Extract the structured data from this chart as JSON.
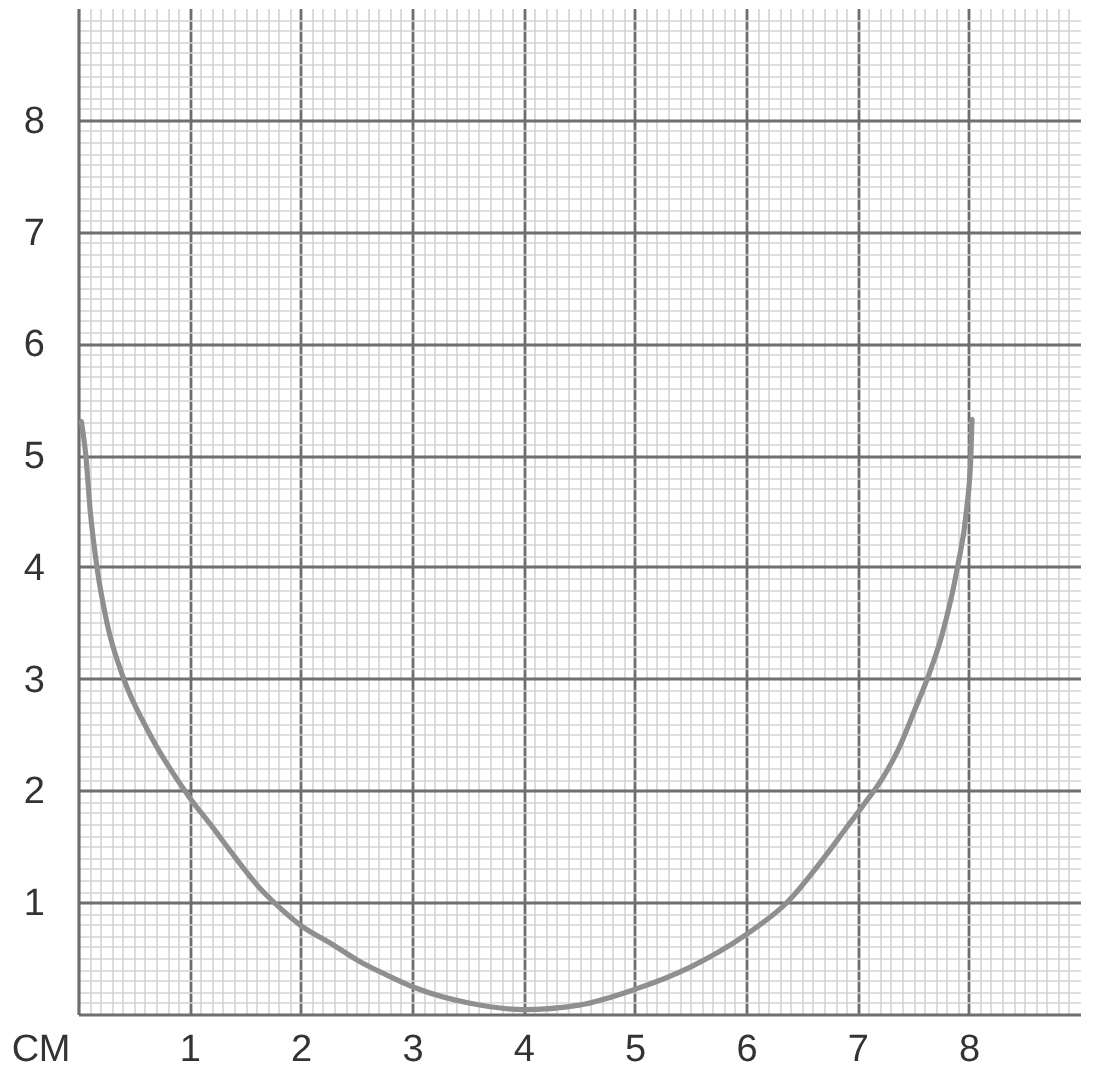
{
  "chart_data": {
    "type": "line",
    "xlabel": "СМ",
    "x": [
      0.03,
      0.07,
      0.11,
      0.17,
      0.26,
      0.41,
      0.62,
      1.0,
      1.21,
      1.39,
      1.63,
      1.78,
      1.99,
      2.29,
      2.53,
      2.77,
      3.04,
      3.5,
      4,
      4.5,
      5,
      5.5,
      6,
      6.37,
      6.71,
      6.89,
      7.07,
      7.22,
      7.37,
      7.52,
      7.64,
      7.76,
      7.9,
      7.98,
      8.02,
      8.03
    ],
    "series": [
      {
        "color": "#8f8f8f",
        "values": [
          5.3,
          5.0,
          4.5,
          4.0,
          3.5,
          3.0,
          2.55,
          1.94,
          1.67,
          1.43,
          1.13,
          0.98,
          0.8,
          0.62,
          0.47,
          0.35,
          0.23,
          0.1,
          0.04,
          0.08,
          0.22,
          0.42,
          0.71,
          1.0,
          1.41,
          1.65,
          1.89,
          2.1,
          2.37,
          2.73,
          3.03,
          3.39,
          4.0,
          4.5,
          5.0,
          5.32
        ]
      }
    ],
    "xlim": [
      0,
      9
    ],
    "ylim": [
      0,
      9
    ],
    "xticks": [
      {
        "value": 0.1,
        "label": null
      },
      {
        "value": 0.2,
        "label": null
      },
      {
        "value": 0.3,
        "label": null
      },
      {
        "value": 0.4,
        "label": null
      },
      {
        "value": 0.5,
        "label": null
      },
      {
        "value": 0.6,
        "label": null
      },
      {
        "value": 0.7,
        "label": null
      },
      {
        "value": 0.8,
        "label": null
      },
      {
        "value": 0.9,
        "label": null
      },
      1,
      {
        "value": 1.1,
        "label": null
      },
      {
        "value": 1.2,
        "label": null
      },
      {
        "value": 1.3,
        "label": null
      },
      {
        "value": 1.4,
        "label": null
      },
      {
        "value": 1.5,
        "label": null
      },
      {
        "value": 1.6,
        "label": null
      },
      {
        "value": 1.7,
        "label": null
      },
      {
        "value": 1.8,
        "label": null
      },
      {
        "value": 1.9,
        "label": null
      },
      2,
      {
        "value": 2.1,
        "label": null
      },
      {
        "value": 2.2,
        "label": null
      },
      {
        "value": 2.3,
        "label": null
      },
      {
        "value": 2.4,
        "label": null
      },
      {
        "value": 2.5,
        "label": null
      },
      {
        "value": 2.6,
        "label": null
      },
      {
        "value": 2.7,
        "label": null
      },
      {
        "value": 2.8,
        "label": null
      },
      {
        "value": 2.9,
        "label": null
      },
      3,
      {
        "value": 3.1,
        "label": null
      },
      {
        "value": 3.2,
        "label": null
      },
      {
        "value": 3.3,
        "label": null
      },
      {
        "value": 3.4,
        "label": null
      },
      {
        "value": 3.5,
        "label": null
      },
      {
        "value": 3.6,
        "label": null
      },
      {
        "value": 3.7,
        "label": null
      },
      {
        "value": 3.8,
        "label": null
      },
      {
        "value": 3.9,
        "label": null
      },
      4,
      {
        "value": 4.1,
        "label": null
      },
      {
        "value": 4.2,
        "label": null
      },
      {
        "value": 4.3,
        "label": null
      },
      {
        "value": 4.4,
        "label": null
      },
      {
        "value": 4.5,
        "label": null
      },
      {
        "value": 4.6,
        "label": null
      },
      {
        "value": 4.7,
        "label": null
      },
      {
        "value": 4.8,
        "label": null
      },
      {
        "value": 4.9,
        "label": null
      },
      5,
      {
        "value": 5.1,
        "label": null
      },
      {
        "value": 5.2,
        "label": null
      },
      {
        "value": 5.3,
        "label": null
      },
      {
        "value": 5.4,
        "label": null
      },
      {
        "value": 5.5,
        "label": null
      },
      {
        "value": 5.6,
        "label": null
      },
      {
        "value": 5.7,
        "label": null
      },
      {
        "value": 5.8,
        "label": null
      },
      {
        "value": 5.9,
        "label": null
      },
      6,
      {
        "value": 6.1,
        "label": null
      },
      {
        "value": 6.2,
        "label": null
      },
      {
        "value": 6.3,
        "label": null
      },
      {
        "value": 6.4,
        "label": null
      },
      {
        "value": 6.5,
        "label": null
      },
      {
        "value": 6.6,
        "label": null
      },
      {
        "value": 6.7,
        "label": null
      },
      {
        "value": 6.8,
        "label": null
      },
      {
        "value": 6.9,
        "label": null
      },
      7,
      {
        "value": 7.1,
        "label": null
      },
      {
        "value": 7.2,
        "label": null
      },
      {
        "value": 7.3,
        "label": null
      },
      {
        "value": 7.4,
        "label": null
      },
      {
        "value": 7.5,
        "label": null
      },
      {
        "value": 7.6,
        "label": null
      },
      {
        "value": 7.7,
        "label": null
      },
      {
        "value": 7.8,
        "label": null
      },
      {
        "value": 7.9,
        "label": null
      },
      8,
      {
        "value": 8.1,
        "label": null
      },
      {
        "value": 8.2,
        "label": null
      },
      {
        "value": 8.3,
        "label": null
      },
      {
        "value": 8.4,
        "label": null
      },
      {
        "value": 8.5,
        "label": null
      },
      {
        "value": 8.6,
        "label": null
      },
      {
        "value": 8.7,
        "label": null
      },
      {
        "value": 8.8,
        "label": null
      },
      {
        "value": 8.9,
        "label": null
      }
    ],
    "yticks": [
      {
        "value": 0.1,
        "label": null
      },
      {
        "value": 0.2,
        "label": null
      },
      {
        "value": 0.3,
        "label": null
      },
      {
        "value": 0.4,
        "label": null
      },
      {
        "value": 0.5,
        "label": null
      },
      {
        "value": 0.6,
        "label": null
      },
      {
        "value": 0.7,
        "label": null
      },
      {
        "value": 0.8,
        "label": null
      },
      {
        "value": 0.9,
        "label": null
      },
      1,
      {
        "value": 1.1,
        "label": null
      },
      {
        "value": 1.2,
        "label": null
      },
      {
        "value": 1.3,
        "label": null
      },
      {
        "value": 1.4,
        "label": null
      },
      {
        "value": 1.5,
        "label": null
      },
      {
        "value": 1.6,
        "label": null
      },
      {
        "value": 1.7,
        "label": null
      },
      {
        "value": 1.8,
        "label": null
      },
      {
        "value": 1.9,
        "label": null
      },
      2,
      {
        "value": 2.1,
        "label": null
      },
      {
        "value": 2.2,
        "label": null
      },
      {
        "value": 2.3,
        "label": null
      },
      {
        "value": 2.4,
        "label": null
      },
      {
        "value": 2.5,
        "label": null
      },
      {
        "value": 2.6,
        "label": null
      },
      {
        "value": 2.7,
        "label": null
      },
      {
        "value": 2.8,
        "label": null
      },
      {
        "value": 2.9,
        "label": null
      },
      3,
      {
        "value": 3.1,
        "label": null
      },
      {
        "value": 3.2,
        "label": null
      },
      {
        "value": 3.3,
        "label": null
      },
      {
        "value": 3.4,
        "label": null
      },
      {
        "value": 3.5,
        "label": null
      },
      {
        "value": 3.6,
        "label": null
      },
      {
        "value": 3.7,
        "label": null
      },
      {
        "value": 3.8,
        "label": null
      },
      {
        "value": 3.9,
        "label": null
      },
      4,
      {
        "value": 4.1,
        "label": null
      },
      {
        "value": 4.2,
        "label": null
      },
      {
        "value": 4.3,
        "label": null
      },
      {
        "value": 4.4,
        "label": null
      },
      {
        "value": 4.5,
        "label": null
      },
      {
        "value": 4.6,
        "label": null
      },
      {
        "value": 4.7,
        "label": null
      },
      {
        "value": 4.8,
        "label": null
      },
      {
        "value": 4.9,
        "label": null
      },
      5,
      {
        "value": 5.1,
        "label": null
      },
      {
        "value": 5.2,
        "label": null
      },
      {
        "value": 5.3,
        "label": null
      },
      {
        "value": 5.4,
        "label": null
      },
      {
        "value": 5.5,
        "label": null
      },
      {
        "value": 5.6,
        "label": null
      },
      {
        "value": 5.7,
        "label": null
      },
      {
        "value": 5.8,
        "label": null
      },
      {
        "value": 5.9,
        "label": null
      },
      6,
      {
        "value": 6.1,
        "label": null
      },
      {
        "value": 6.2,
        "label": null
      },
      {
        "value": 6.3,
        "label": null
      },
      {
        "value": 6.4,
        "label": null
      },
      {
        "value": 6.5,
        "label": null
      },
      {
        "value": 6.6,
        "label": null
      },
      {
        "value": 6.7,
        "label": null
      },
      {
        "value": 6.8,
        "label": null
      },
      {
        "value": 6.9,
        "label": null
      },
      7,
      {
        "value": 7.1,
        "label": null
      },
      {
        "value": 7.2,
        "label": null
      },
      {
        "value": 7.3,
        "label": null
      },
      {
        "value": 7.4,
        "label": null
      },
      {
        "value": 7.5,
        "label": null
      },
      {
        "value": 7.6,
        "label": null
      },
      {
        "value": 7.7,
        "label": null
      },
      {
        "value": 7.8,
        "label": null
      },
      {
        "value": 7.9,
        "label": null
      },
      8,
      {
        "value": 8.1,
        "label": null
      },
      {
        "value": 8.2,
        "label": null
      },
      {
        "value": 8.3,
        "label": null
      },
      {
        "value": 8.4,
        "label": null
      },
      {
        "value": 8.5,
        "label": null
      },
      {
        "value": 8.6,
        "label": null
      },
      {
        "value": 8.7,
        "label": null
      },
      {
        "value": 8.8,
        "label": null
      },
      {
        "value": 8.9,
        "label": null
      }
    ],
    "grid": true
  }
}
